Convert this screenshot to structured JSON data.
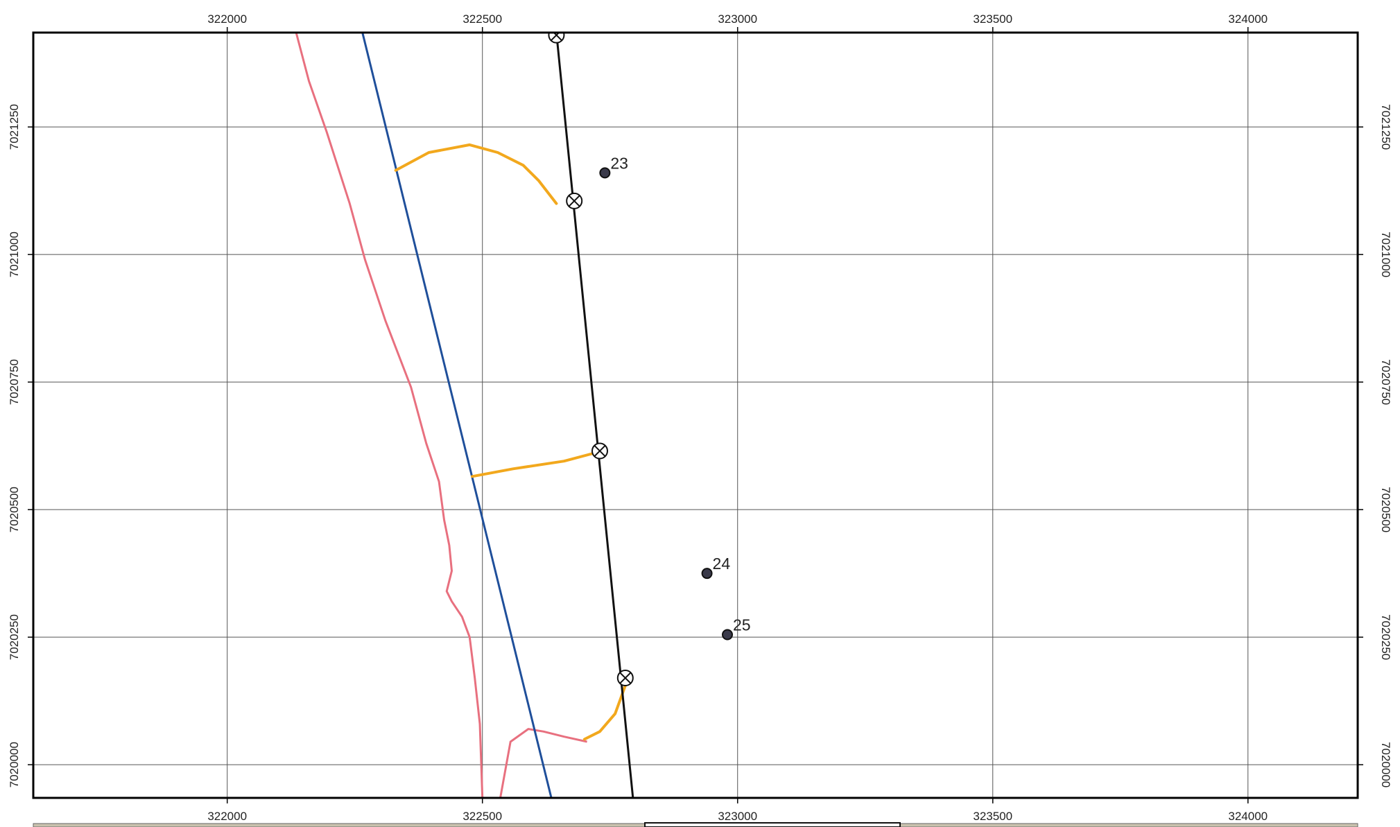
{
  "map": {
    "crs_x_ticks": [
      322000,
      322500,
      323000,
      323500,
      324000
    ],
    "crs_y_ticks": [
      7020000,
      7020250,
      7020500,
      7020750,
      7021000,
      7021250
    ],
    "x_tick_labels": [
      "322000",
      "322500",
      "323000",
      "323500",
      "324000"
    ],
    "y_tick_labels": [
      "7020000",
      "7020250",
      "7020500",
      "7020750",
      "7021000",
      "7021250"
    ],
    "extent": {
      "x_min": 321620,
      "x_max": 324215,
      "y_min": 7019935,
      "y_max": 7021435
    },
    "grid": true,
    "colors": {
      "frame": "#000000",
      "grid": "#555555",
      "pink_line": "#e8707f",
      "blue_line": "#1f4f9a",
      "black_line": "#111111",
      "orange_line": "#f2a81d",
      "point_fill": "#3a3a4a",
      "legend_strip": "#c9c2ae"
    },
    "lines": {
      "pink": [
        [
          322135,
          7021435
        ],
        [
          322160,
          7021340
        ],
        [
          322195,
          7021240
        ],
        [
          322240,
          7021100
        ],
        [
          322270,
          7020990
        ],
        [
          322310,
          7020870
        ],
        [
          322360,
          7020740
        ],
        [
          322390,
          7020630
        ],
        [
          322415,
          7020555
        ],
        [
          322425,
          7020480
        ],
        [
          322435,
          7020430
        ],
        [
          322440,
          7020380
        ],
        [
          322430,
          7020340
        ],
        [
          322440,
          7020320
        ],
        [
          322460,
          7020290
        ],
        [
          322475,
          7020250
        ],
        [
          322485,
          7020170
        ],
        [
          322495,
          7020080
        ],
        [
          322500,
          7019935
        ]
      ],
      "pink_short": [
        [
          322535,
          7019935
        ],
        [
          322555,
          7020045
        ],
        [
          322590,
          7020070
        ],
        [
          322620,
          7020065
        ],
        [
          322660,
          7020055
        ],
        [
          322705,
          7020045
        ]
      ],
      "blue": [
        [
          322265,
          7021435
        ],
        [
          322635,
          7019935
        ]
      ],
      "black": [
        [
          322645,
          7021435
        ],
        [
          322795,
          7019935
        ]
      ],
      "orange": [
        [
          [
            322330,
            7021165
          ],
          [
            322395,
            7021200
          ],
          [
            322475,
            7021215
          ],
          [
            322530,
            7021200
          ],
          [
            322580,
            7021175
          ],
          [
            322610,
            7021145
          ],
          [
            322645,
            7021100
          ]
        ],
        [
          [
            322480,
            7020565
          ],
          [
            322560,
            7020580
          ],
          [
            322660,
            7020595
          ],
          [
            322735,
            7020615
          ]
        ],
        [
          [
            322780,
            7020155
          ],
          [
            322760,
            7020100
          ],
          [
            322730,
            7020065
          ],
          [
            322700,
            7020050
          ]
        ]
      ]
    },
    "crossing_markers": [
      [
        322645,
        7021430
      ],
      [
        322680,
        7021105
      ],
      [
        322730,
        7020615
      ],
      [
        322780,
        7020170
      ]
    ],
    "points": [
      {
        "label": "23",
        "x": 322740,
        "y": 7021160
      },
      {
        "label": "24",
        "x": 322940,
        "y": 7020375
      },
      {
        "label": "25",
        "x": 322980,
        "y": 7020255
      }
    ]
  }
}
